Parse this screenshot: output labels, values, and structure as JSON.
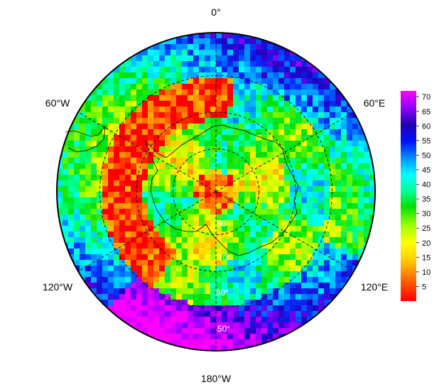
{
  "map": {
    "projection": "south polar stereographic",
    "graticule_style": "dashed",
    "longitude_labels": [
      {
        "id": "lon-0",
        "text": "0°"
      },
      {
        "id": "lon-60e",
        "text": "60°E"
      },
      {
        "id": "lon-120e",
        "text": "120°E"
      },
      {
        "id": "lon-180",
        "text": "180°W"
      },
      {
        "id": "lon-120w",
        "text": "120°W"
      },
      {
        "id": "lon-60w",
        "text": "60°W"
      }
    ],
    "latitude_labels": [
      {
        "id": "lat-80",
        "text": "80°"
      },
      {
        "id": "lat-70",
        "text": "70°"
      },
      {
        "id": "lat-60",
        "text": "60°"
      },
      {
        "id": "lat-50",
        "text": "50°"
      }
    ]
  },
  "colorbar": {
    "min": 0,
    "max": 72,
    "ticks": [
      "5",
      "10",
      "15",
      "20",
      "25",
      "30",
      "35",
      "40",
      "45",
      "50",
      "55",
      "60",
      "65",
      "70"
    ],
    "colors": [
      "#ff0000",
      "#ff6000",
      "#ffc000",
      "#ffff00",
      "#a0ff00",
      "#00e000",
      "#00ff80",
      "#00ffff",
      "#00a0ff",
      "#0030ff",
      "#2000c0",
      "#8000ff",
      "#d000ff",
      "#ff00ff"
    ]
  }
}
